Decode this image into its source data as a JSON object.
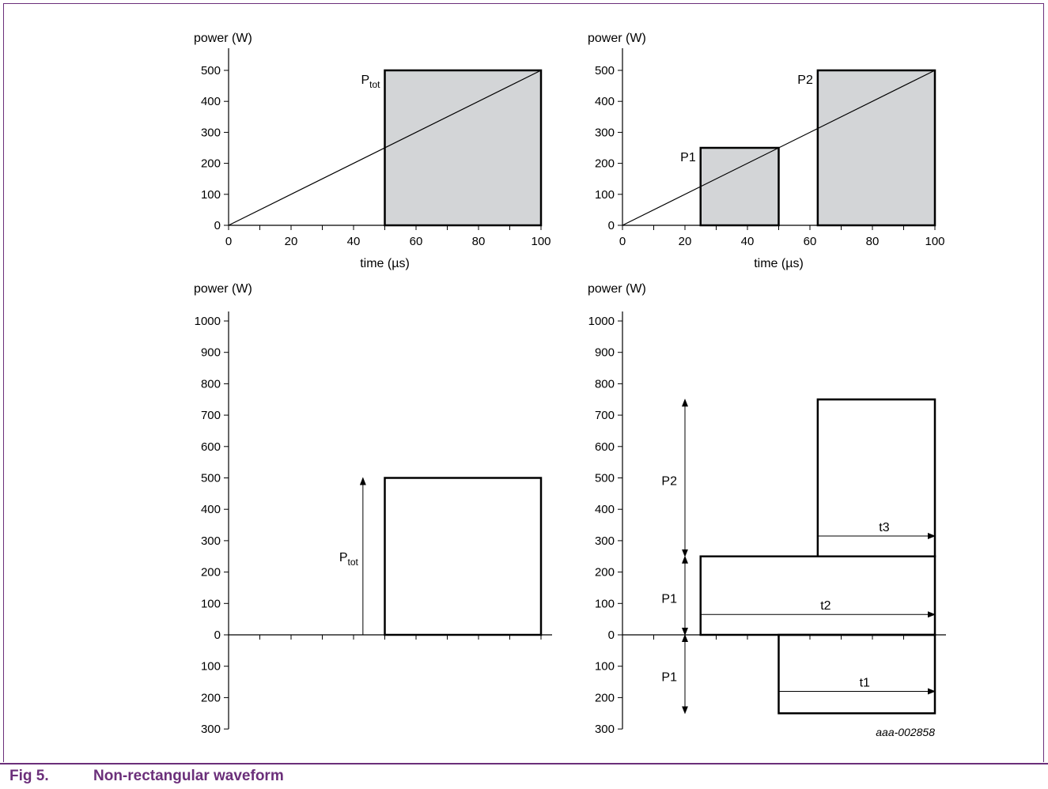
{
  "figure": {
    "number": "Fig 5.",
    "title": "Non-rectangular waveform",
    "code": "aaa-002858"
  },
  "colors": {
    "frame": "#6b2f7a",
    "caption": "#6b2f7a",
    "fill": "#d3d5d7",
    "ink": "#000000"
  },
  "chart_data": [
    {
      "type": "area",
      "ylabel": "power (W)",
      "xlabel": "time (µs)",
      "xlim": [
        0,
        100
      ],
      "ylim": [
        0,
        500
      ],
      "x_ticks": [
        0,
        20,
        40,
        60,
        80,
        100
      ],
      "y_ticks": [
        0,
        100,
        200,
        300,
        400,
        500
      ],
      "ramp": {
        "x": [
          0,
          100
        ],
        "y": [
          0,
          500
        ]
      },
      "rectangles": [
        {
          "label": "P",
          "sub": "tot",
          "x0": 50,
          "x1": 100,
          "height": 500,
          "filled": true
        }
      ]
    },
    {
      "type": "area",
      "ylabel": "power (W)",
      "xlabel": "time (µs)",
      "xlim": [
        0,
        100
      ],
      "ylim": [
        0,
        500
      ],
      "x_ticks": [
        0,
        20,
        40,
        60,
        80,
        100
      ],
      "y_ticks": [
        0,
        100,
        200,
        300,
        400,
        500
      ],
      "ramp": {
        "x": [
          0,
          100
        ],
        "y": [
          0,
          500
        ]
      },
      "rectangles": [
        {
          "label": "P1",
          "x0": 25,
          "x1": 50,
          "height": 250,
          "filled": true
        },
        {
          "label": "P2",
          "x0": 62.5,
          "x1": 100,
          "height": 500,
          "filled": true
        }
      ]
    },
    {
      "type": "area",
      "ylabel": "power (W)",
      "xlim": [
        0,
        100
      ],
      "ylim": [
        -300,
        1000
      ],
      "y_tick_values": [
        -300,
        -200,
        -100,
        0,
        100,
        200,
        300,
        400,
        500,
        600,
        700,
        800,
        900,
        1000
      ],
      "y_tick_labels": [
        "300",
        "200",
        "100",
        "0",
        "100",
        "200",
        "300",
        "400",
        "500",
        "600",
        "700",
        "800",
        "900",
        "1000"
      ],
      "rectangles": [
        {
          "x0": 50,
          "x1": 100,
          "y0": 0,
          "y1": 500,
          "filled": false
        }
      ],
      "arrows": [
        {
          "x": 43,
          "from": 0,
          "to": 500,
          "label": "P",
          "sub": "tot"
        }
      ]
    },
    {
      "type": "area",
      "ylabel": "power (W)",
      "xlim": [
        0,
        100
      ],
      "ylim": [
        -300,
        1000
      ],
      "y_tick_values": [
        -300,
        -200,
        -100,
        0,
        100,
        200,
        300,
        400,
        500,
        600,
        700,
        800,
        900,
        1000
      ],
      "y_tick_labels": [
        "300",
        "200",
        "100",
        "0",
        "100",
        "200",
        "300",
        "400",
        "500",
        "600",
        "700",
        "800",
        "900",
        "1000"
      ],
      "rectangles": [
        {
          "x0": 25,
          "x1": 100,
          "y0": 0,
          "y1": 250,
          "filled": false
        },
        {
          "x0": 62.5,
          "x1": 100,
          "y0": 250,
          "y1": 750,
          "filled": false
        },
        {
          "x0": 50,
          "x1": 100,
          "y0": -250,
          "y1": 0,
          "filled": false
        }
      ],
      "double_arrows": [
        {
          "x": 20,
          "from": -250,
          "to": 0,
          "label": "P1"
        },
        {
          "x": 20,
          "from": 0,
          "to": 250,
          "label": "P1"
        },
        {
          "x": 20,
          "from": 250,
          "to": 750,
          "label": "P2"
        }
      ],
      "time_arrows": [
        {
          "label": "t1",
          "x0": 50,
          "x1": 100,
          "y": -180
        },
        {
          "label": "t2",
          "x0": 25,
          "x1": 100,
          "y": 65
        },
        {
          "label": "t3",
          "x0": 62.5,
          "x1": 100,
          "y": 315
        }
      ]
    }
  ]
}
